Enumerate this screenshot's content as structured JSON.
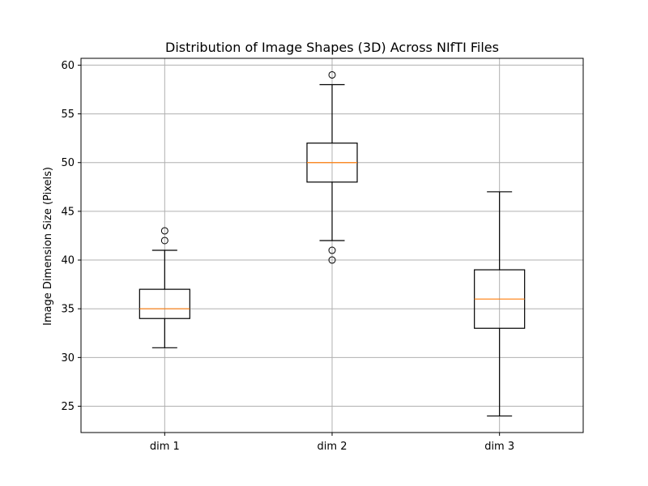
{
  "chart_data": {
    "type": "box",
    "title": "Distribution of Image Shapes (3D) Across NIfTI Files",
    "xlabel": "",
    "ylabel": "Image Dimension Size (Pixels)",
    "ylim": [
      22.3,
      60.7
    ],
    "yticks": [
      25,
      30,
      35,
      40,
      45,
      50,
      55,
      60
    ],
    "grid": true,
    "categories": [
      "dim 1",
      "dim 2",
      "dim 3"
    ],
    "boxes": [
      {
        "category": "dim 1",
        "whisker_low": 31,
        "q1": 34,
        "median": 35,
        "q3": 37,
        "whisker_high": 41,
        "outliers": [
          42,
          43
        ]
      },
      {
        "category": "dim 2",
        "whisker_low": 42,
        "q1": 48,
        "median": 50,
        "q3": 52,
        "whisker_high": 58,
        "outliers": [
          40,
          41,
          59
        ]
      },
      {
        "category": "dim 3",
        "whisker_low": 24,
        "q1": 33,
        "median": 36,
        "q3": 39,
        "whisker_high": 47,
        "outliers": []
      }
    ],
    "colors": {
      "box": "#000000",
      "median": "#ff7f0e",
      "grid": "#b0b0b0"
    }
  }
}
